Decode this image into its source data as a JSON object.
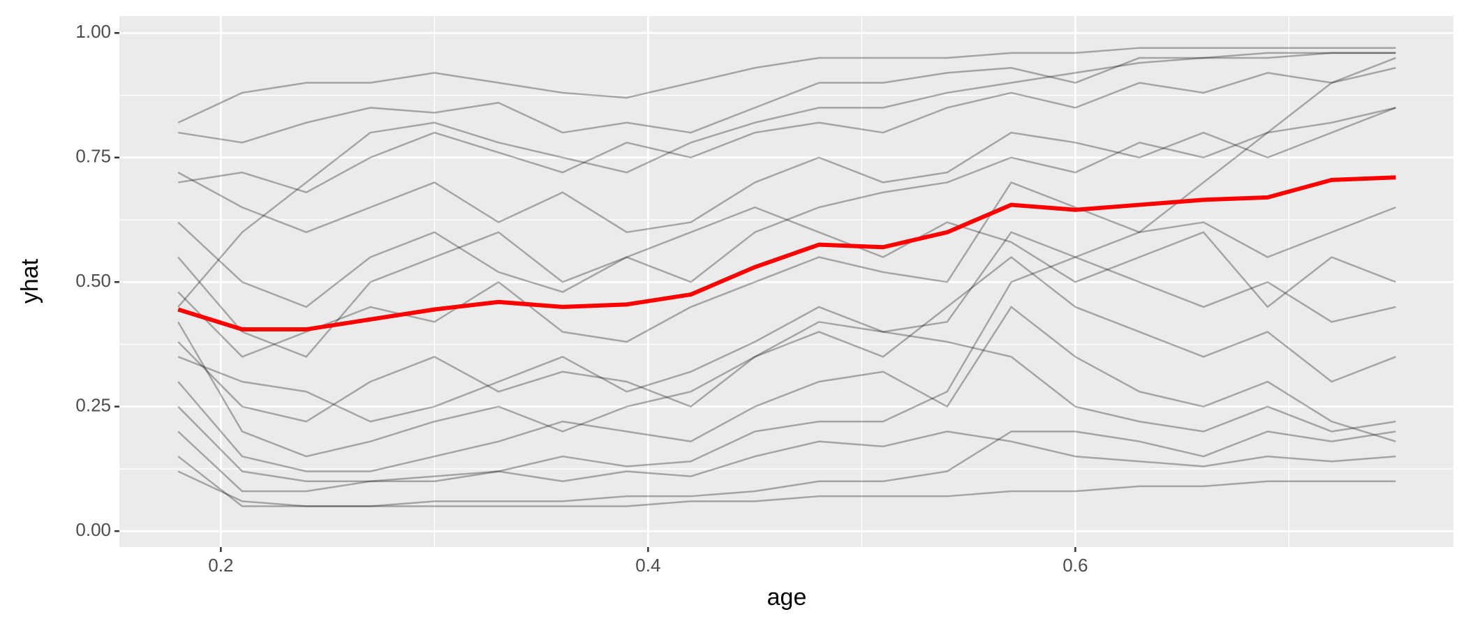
{
  "chart_data": {
    "type": "line",
    "x_label": "age",
    "y_label": "yhat",
    "x": [
      0.18,
      0.21,
      0.24,
      0.27,
      0.3,
      0.33,
      0.36,
      0.39,
      0.42,
      0.45,
      0.48,
      0.51,
      0.54,
      0.57,
      0.6,
      0.63,
      0.66,
      0.69,
      0.72,
      0.75
    ],
    "xlim": [
      0.1525,
      0.777
    ],
    "ylim": [
      -0.032,
      1.034
    ],
    "xticks": [
      0.2,
      0.4,
      0.6
    ],
    "yticks": [
      {
        "value": 0,
        "label": "0.00"
      },
      {
        "value": 0.25,
        "label": "0.25"
      },
      {
        "value": 0.5,
        "label": "0.50"
      },
      {
        "value": 0.75,
        "label": "0.75"
      },
      {
        "value": 1,
        "label": "1.00"
      }
    ],
    "minor_xticks": [
      0.3,
      0.5,
      0.7
    ],
    "minor_yticks": [
      0.125,
      0.375,
      0.625,
      0.875
    ],
    "grid": true,
    "series": [
      {
        "color": "#000000",
        "opacity": 0.3,
        "linewidth": 2.5,
        "values": [
          0.82,
          0.88,
          0.9,
          0.9,
          0.92,
          0.9,
          0.88,
          0.87,
          0.9,
          0.93,
          0.95,
          0.95,
          0.95,
          0.96,
          0.96,
          0.97,
          0.97,
          0.97,
          0.97,
          0.97
        ]
      },
      {
        "color": "#000000",
        "opacity": 0.3,
        "linewidth": 2.5,
        "values": [
          0.12,
          0.06,
          0.05,
          0.05,
          0.05,
          0.05,
          0.05,
          0.05,
          0.06,
          0.06,
          0.07,
          0.07,
          0.07,
          0.08,
          0.08,
          0.09,
          0.09,
          0.1,
          0.1,
          0.1
        ]
      },
      {
        "color": "#000000",
        "opacity": 0.3,
        "linewidth": 2.5,
        "values": [
          0.2,
          0.08,
          0.08,
          0.1,
          0.1,
          0.12,
          0.15,
          0.13,
          0.14,
          0.2,
          0.22,
          0.22,
          0.28,
          0.5,
          0.55,
          0.6,
          0.7,
          0.8,
          0.9,
          0.95
        ]
      },
      {
        "color": "#000000",
        "opacity": 0.3,
        "linewidth": 2.5,
        "values": [
          0.45,
          0.6,
          0.7,
          0.8,
          0.82,
          0.78,
          0.75,
          0.72,
          0.78,
          0.82,
          0.85,
          0.85,
          0.88,
          0.9,
          0.92,
          0.94,
          0.95,
          0.95,
          0.96,
          0.96
        ]
      },
      {
        "color": "#000000",
        "opacity": 0.3,
        "linewidth": 2.5,
        "values": [
          0.38,
          0.25,
          0.22,
          0.3,
          0.35,
          0.28,
          0.32,
          0.3,
          0.25,
          0.35,
          0.42,
          0.4,
          0.38,
          0.35,
          0.25,
          0.22,
          0.2,
          0.25,
          0.2,
          0.22
        ]
      },
      {
        "color": "#000000",
        "opacity": 0.3,
        "linewidth": 2.5,
        "values": [
          0.55,
          0.4,
          0.35,
          0.5,
          0.55,
          0.6,
          0.5,
          0.55,
          0.6,
          0.65,
          0.6,
          0.55,
          0.62,
          0.58,
          0.5,
          0.55,
          0.6,
          0.45,
          0.55,
          0.5
        ]
      },
      {
        "color": "#000000",
        "opacity": 0.3,
        "linewidth": 2.5,
        "values": [
          0.7,
          0.72,
          0.68,
          0.75,
          0.8,
          0.76,
          0.72,
          0.78,
          0.75,
          0.8,
          0.82,
          0.8,
          0.85,
          0.88,
          0.85,
          0.9,
          0.88,
          0.92,
          0.9,
          0.93
        ]
      },
      {
        "color": "#000000",
        "opacity": 0.3,
        "linewidth": 2.5,
        "values": [
          0.3,
          0.15,
          0.12,
          0.12,
          0.15,
          0.18,
          0.22,
          0.2,
          0.18,
          0.25,
          0.3,
          0.32,
          0.25,
          0.45,
          0.35,
          0.28,
          0.25,
          0.3,
          0.22,
          0.18
        ]
      },
      {
        "color": "#000000",
        "opacity": 0.3,
        "linewidth": 2.5,
        "values": [
          0.62,
          0.5,
          0.45,
          0.55,
          0.6,
          0.52,
          0.48,
          0.55,
          0.5,
          0.6,
          0.65,
          0.68,
          0.7,
          0.75,
          0.72,
          0.78,
          0.75,
          0.8,
          0.82,
          0.85
        ]
      },
      {
        "color": "#000000",
        "opacity": 0.3,
        "linewidth": 2.5,
        "values": [
          0.25,
          0.12,
          0.1,
          0.1,
          0.11,
          0.12,
          0.1,
          0.12,
          0.11,
          0.15,
          0.18,
          0.17,
          0.2,
          0.18,
          0.15,
          0.14,
          0.13,
          0.15,
          0.14,
          0.15
        ]
      },
      {
        "color": "#000000",
        "opacity": 0.3,
        "linewidth": 2.5,
        "values": [
          0.48,
          0.35,
          0.4,
          0.45,
          0.42,
          0.5,
          0.4,
          0.38,
          0.45,
          0.5,
          0.55,
          0.52,
          0.5,
          0.7,
          0.65,
          0.6,
          0.62,
          0.55,
          0.6,
          0.65
        ]
      },
      {
        "color": "#000000",
        "opacity": 0.3,
        "linewidth": 2.5,
        "values": [
          0.8,
          0.78,
          0.82,
          0.85,
          0.84,
          0.86,
          0.8,
          0.82,
          0.8,
          0.85,
          0.9,
          0.9,
          0.92,
          0.93,
          0.9,
          0.95,
          0.95,
          0.96,
          0.96,
          0.96
        ]
      },
      {
        "color": "#000000",
        "opacity": 0.3,
        "linewidth": 2.5,
        "values": [
          0.15,
          0.05,
          0.05,
          0.05,
          0.06,
          0.06,
          0.06,
          0.07,
          0.07,
          0.08,
          0.1,
          0.1,
          0.12,
          0.2,
          0.2,
          0.18,
          0.15,
          0.2,
          0.18,
          0.2
        ]
      },
      {
        "color": "#000000",
        "opacity": 0.3,
        "linewidth": 2.5,
        "values": [
          0.35,
          0.3,
          0.28,
          0.22,
          0.25,
          0.3,
          0.35,
          0.28,
          0.32,
          0.38,
          0.45,
          0.4,
          0.42,
          0.6,
          0.55,
          0.5,
          0.45,
          0.5,
          0.42,
          0.45
        ]
      },
      {
        "color": "#000000",
        "opacity": 0.3,
        "linewidth": 2.5,
        "values": [
          0.72,
          0.65,
          0.6,
          0.65,
          0.7,
          0.62,
          0.68,
          0.6,
          0.62,
          0.7,
          0.75,
          0.7,
          0.72,
          0.8,
          0.78,
          0.75,
          0.8,
          0.75,
          0.8,
          0.85
        ]
      },
      {
        "color": "#000000",
        "opacity": 0.3,
        "linewidth": 2.5,
        "values": [
          0.42,
          0.2,
          0.15,
          0.18,
          0.22,
          0.25,
          0.2,
          0.25,
          0.28,
          0.35,
          0.4,
          0.35,
          0.45,
          0.55,
          0.45,
          0.4,
          0.35,
          0.4,
          0.3,
          0.35
        ]
      },
      {
        "color": "#ff0000",
        "opacity": 1,
        "linewidth": 6,
        "values": [
          0.445,
          0.405,
          0.405,
          0.425,
          0.445,
          0.46,
          0.45,
          0.455,
          0.475,
          0.53,
          0.575,
          0.57,
          0.6,
          0.655,
          0.645,
          0.655,
          0.665,
          0.67,
          0.705,
          0.71
        ]
      }
    ]
  }
}
